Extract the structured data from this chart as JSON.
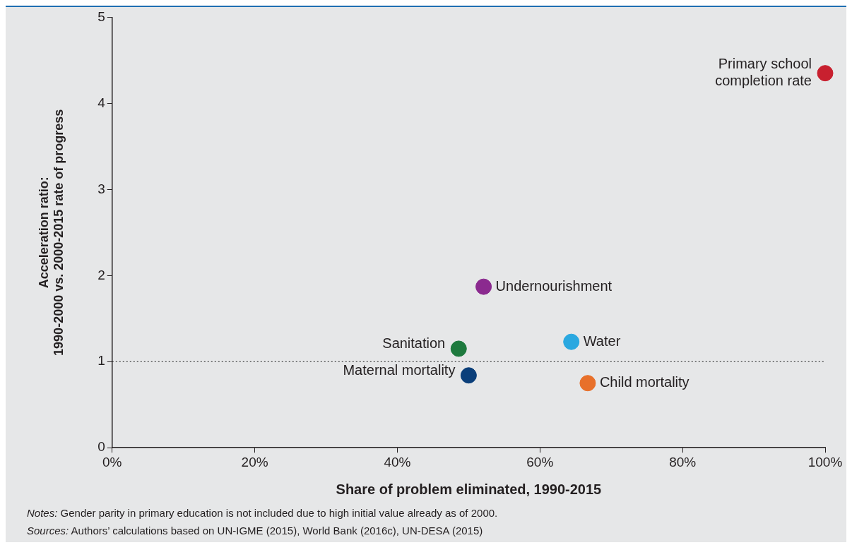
{
  "chart_data": {
    "type": "scatter",
    "xlabel": "Share of problem eliminated, 1990-2015",
    "ylabel": "Acceleration ratio:\n1990-2000 vs. 2000-2015 rate of progress",
    "x": [
      100,
      52.1,
      48.6,
      64.4,
      50.0,
      66.7
    ],
    "values": [
      4.35,
      1.87,
      1.15,
      1.23,
      0.84,
      0.75
    ],
    "colors": [
      "#c8202f",
      "#8b2a8f",
      "#1e7a3e",
      "#2aa8e0",
      "#0b3f7a",
      "#e8702a"
    ],
    "marker": "circle",
    "xlim": [
      0,
      100
    ],
    "xticks": [
      {
        "value": 0,
        "label": "0%"
      },
      {
        "value": 20,
        "label": "20%"
      },
      {
        "value": 40,
        "label": "40%"
      },
      {
        "value": 60,
        "label": "60%"
      },
      {
        "value": 80,
        "label": "80%"
      },
      {
        "value": 100,
        "label": "100%"
      }
    ],
    "ylim": [
      0,
      5
    ],
    "yticks": [
      0,
      1,
      2,
      3,
      4,
      5
    ],
    "grid": false,
    "legend": false,
    "ref_lines": [
      {
        "axis": "y",
        "value": 1,
        "line_style": "dotted",
        "color": "#222222"
      }
    ],
    "annotations": [
      {
        "text": "Primary school\ncompletion rate",
        "x": 100,
        "y": 4.35
      },
      {
        "text": "Undernourishment",
        "x": 52.1,
        "y": 1.87
      },
      {
        "text": "Sanitation",
        "x": 48.6,
        "y": 1.15
      },
      {
        "text": "Water",
        "x": 64.4,
        "y": 1.23
      },
      {
        "text": "Maternal mortality",
        "x": 50.0,
        "y": 0.84
      },
      {
        "text": "Child mortality",
        "x": 66.7,
        "y": 0.75
      },
      "Notes: Gender parity in primary education is not included due to high initial value already as of 2000.",
      "Sources: Authors’ calculations based on UN-IGME (2015), World Bank (2016c), UN-DESA (2015)"
    ]
  }
}
